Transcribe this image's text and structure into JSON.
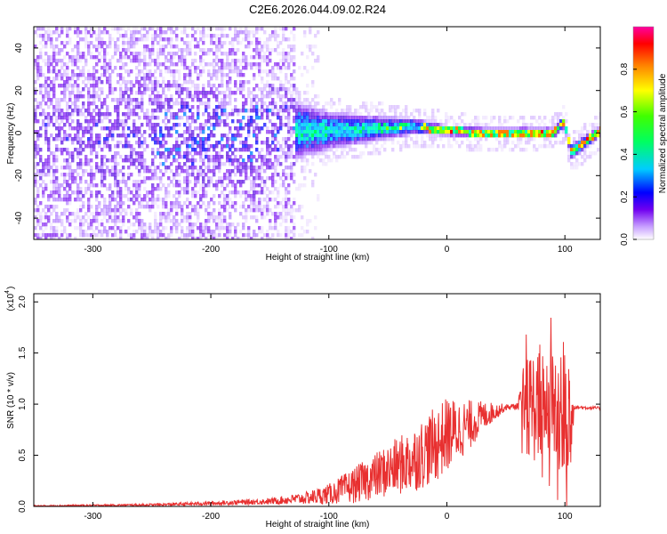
{
  "title": "C2E6.2026.044.09.02.R24",
  "chart_data": [
    {
      "type": "heatmap",
      "xlabel": "Height of straight line (km)",
      "ylabel": "Frequency (Hz)",
      "xlim": [
        -350,
        130
      ],
      "ylim": [
        -50,
        50
      ],
      "xticks": [
        -300,
        -200,
        -100,
        0,
        100
      ],
      "yticks": [
        -40,
        -20,
        0,
        20,
        40
      ],
      "colorbar": {
        "label": "Normalized spectral amplitude",
        "range": [
          0,
          1
        ],
        "ticks": [
          0.0,
          0.2,
          0.4,
          0.6,
          0.8
        ],
        "colormap": [
          "#ffffff",
          "#c8a0ff",
          "#6a00e8",
          "#0000ff",
          "#00ffff",
          "#00ff00",
          "#ffff00",
          "#ff8000",
          "#ff0000",
          "#ff00a0"
        ]
      },
      "profile": {
        "description_points_x": [
          -350,
          -250,
          -150,
          -130,
          -100,
          -60,
          -30,
          0,
          30,
          60,
          90,
          97,
          100,
          104,
          130
        ],
        "center_hz": [
          0,
          0,
          0,
          2,
          2,
          3,
          4,
          2,
          1,
          1,
          1,
          6,
          2,
          -8,
          2
        ],
        "halfwidth_hz": [
          50,
          50,
          50,
          14,
          9,
          6,
          4,
          2.5,
          2.5,
          2.5,
          2.5,
          3,
          2.5,
          4,
          2.5
        ]
      }
    },
    {
      "type": "line",
      "xlabel": "Height of straight line (km)",
      "ylabel": "SNR (10 * v/v)",
      "yscale_label": "(x10",
      "yscale_exp": "4",
      "color": "#e83030",
      "xlim": [
        -350,
        130
      ],
      "ylim": [
        0,
        20800
      ],
      "xticks": [
        -300,
        -200,
        -100,
        0,
        100
      ],
      "yticks": [
        0,
        5000,
        10000,
        15000,
        20000
      ],
      "ytick_labels": [
        "0.0",
        "0.5",
        "1.0",
        "1.5",
        "2.0"
      ],
      "envelope": {
        "x": [
          -350,
          -250,
          -200,
          -150,
          -120,
          -100,
          -80,
          -50,
          -30,
          -10,
          0,
          20,
          30,
          50,
          60,
          65,
          70,
          80,
          90,
          100,
          103,
          108,
          130
        ],
        "mean": [
          50,
          150,
          300,
          500,
          800,
          1200,
          2000,
          3500,
          4500,
          6000,
          7000,
          8000,
          8800,
          9700,
          9800,
          9800,
          9800,
          9800,
          9800,
          9800,
          9700,
          9700,
          9600
        ],
        "noise": [
          60,
          120,
          200,
          300,
          600,
          1000,
          1700,
          2600,
          3200,
          3700,
          3700,
          2400,
          1500,
          300,
          300,
          4000,
          5500,
          5500,
          6000,
          7500,
          10000,
          200,
          150
        ]
      }
    }
  ]
}
